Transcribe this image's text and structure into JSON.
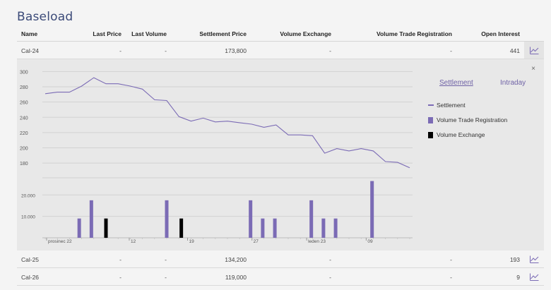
{
  "page": {
    "title": "Baseload"
  },
  "table": {
    "headers": {
      "name": "Name",
      "last_price": "Last Price",
      "last_volume": "Last Volume",
      "settlement_price": "Settlement Price",
      "volume_exchange": "Volume Exchange",
      "volume_trade_registration": "Volume Trade Registration",
      "open_interest": "Open Interest"
    },
    "rows": [
      {
        "name": "Cal-24",
        "last_price": "-",
        "last_volume": "-",
        "settlement_price": "173,800",
        "volume_exchange": "-",
        "volume_trade_registration": "-",
        "open_interest": "441"
      },
      {
        "name": "Cal-25",
        "last_price": "-",
        "last_volume": "-",
        "settlement_price": "134,200",
        "volume_exchange": "-",
        "volume_trade_registration": "-",
        "open_interest": "193"
      },
      {
        "name": "Cal-26",
        "last_price": "-",
        "last_volume": "-",
        "settlement_price": "119,000",
        "volume_exchange": "-",
        "volume_trade_registration": "-",
        "open_interest": "9"
      }
    ]
  },
  "panel": {
    "close_label": "×",
    "tabs": {
      "settlement": "Settlement",
      "intraday": "Intraday"
    },
    "legend": {
      "settlement": "Settlement",
      "volume_trade_registration": "Volume Trade Registration",
      "volume_exchange": "Volume Exchange"
    }
  },
  "colors": {
    "accent": "#7b6bb5",
    "volume_exchange": "#000000",
    "title": "#3b4a78"
  },
  "chart_data": {
    "type": "line",
    "price": {
      "series_name": "Settlement",
      "y_ticks": [
        180,
        200,
        220,
        240,
        260,
        280,
        300
      ],
      "ylim": [
        170,
        305
      ],
      "values": [
        271,
        273,
        273,
        281,
        292,
        284,
        284,
        281,
        277,
        263,
        262,
        241,
        235,
        239,
        234,
        235,
        233,
        231,
        227,
        230,
        217,
        217,
        216,
        193,
        199,
        196,
        199,
        196,
        182,
        181,
        174
      ]
    },
    "volume": {
      "y_ticks": [
        "10.000",
        "20.000"
      ],
      "y_tick_values": [
        10000,
        20000
      ],
      "ylim": [
        0,
        28000
      ],
      "x_tick_labels": [
        "prosinec 22",
        "12",
        "19",
        "27",
        "leden 23",
        "09"
      ],
      "trade_registration": [
        {
          "i": 2.8,
          "v": 9000
        },
        {
          "i": 3.8,
          "v": 17500
        },
        {
          "i": 10.0,
          "v": 17500
        },
        {
          "i": 16.9,
          "v": 17500
        },
        {
          "i": 17.9,
          "v": 9000
        },
        {
          "i": 18.9,
          "v": 9000
        },
        {
          "i": 21.9,
          "v": 17500
        },
        {
          "i": 22.9,
          "v": 9000
        },
        {
          "i": 23.9,
          "v": 9000
        },
        {
          "i": 26.9,
          "v": 26500
        }
      ],
      "exchange": [
        {
          "i": 5.0,
          "v": 9000
        },
        {
          "i": 11.2,
          "v": 9000
        }
      ]
    }
  }
}
